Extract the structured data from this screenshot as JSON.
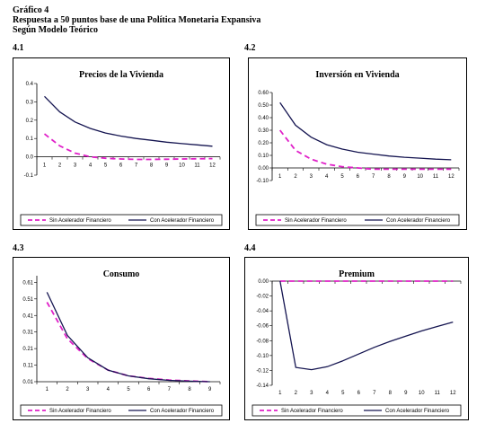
{
  "header": {
    "line1": "Gráfico 4",
    "line2": "Respuesta  a  50  puntos base de una Política Monetaria Expansiva",
    "line3": "Según Modelo Teórico"
  },
  "panel_labels": [
    "4.1",
    "4.2",
    "4.3",
    "4.4"
  ],
  "colors": {
    "sin": "#e020c8",
    "con": "#141450"
  },
  "chart_data": [
    {
      "type": "line",
      "title": "Precios de la Vivienda",
      "x": [
        1,
        2,
        3,
        4,
        5,
        6,
        7,
        8,
        9,
        10,
        11,
        12
      ],
      "ylim": [
        -0.1,
        0.4
      ],
      "yticks": [
        -0.1,
        0,
        0.1,
        0.2,
        0.3,
        0.4
      ],
      "ytick_labels": [
        "-0.1",
        "0.0",
        "0.1",
        "0.2",
        "0.3",
        "0.4"
      ],
      "series": [
        {
          "name": "Sin Acelerador Financiero",
          "style": "dashed",
          "values": [
            0.125,
            0.06,
            0.02,
            0.0,
            -0.008,
            -0.012,
            -0.014,
            -0.014,
            -0.013,
            -0.012,
            -0.011,
            -0.01
          ]
        },
        {
          "name": "Con Acelerador Financiero",
          "style": "solid",
          "values": [
            0.33,
            0.245,
            0.19,
            0.155,
            0.13,
            0.113,
            0.1,
            0.09,
            0.08,
            0.072,
            0.065,
            0.058
          ]
        }
      ],
      "legend_position": "bottom"
    },
    {
      "type": "line",
      "title": "Inversión en Vivienda",
      "x": [
        1,
        2,
        3,
        4,
        5,
        6,
        7,
        8,
        9,
        10,
        11,
        12
      ],
      "ylim": [
        -0.1,
        0.6
      ],
      "yticks": [
        -0.1,
        0,
        0.1,
        0.2,
        0.3,
        0.4,
        0.5,
        0.6
      ],
      "ytick_labels": [
        "-0.10",
        "0.00",
        "0.10",
        "0.20",
        "0.30",
        "0.40",
        "0.50",
        "0.60"
      ],
      "series": [
        {
          "name": "Sin Acelerador Financiero",
          "style": "dashed",
          "values": [
            0.3,
            0.14,
            0.07,
            0.03,
            0.01,
            0.0,
            -0.01,
            -0.01,
            -0.01,
            -0.01,
            -0.01,
            -0.01
          ]
        },
        {
          "name": "Con Acelerador Financiero",
          "style": "solid",
          "values": [
            0.52,
            0.34,
            0.245,
            0.185,
            0.15,
            0.125,
            0.11,
            0.095,
            0.085,
            0.078,
            0.07,
            0.065
          ]
        }
      ],
      "legend_position": "bottom"
    },
    {
      "type": "line",
      "title": "Consumo",
      "x": [
        1,
        2,
        3,
        4,
        5,
        6,
        7,
        8,
        9
      ],
      "ylim": [
        0.01,
        0.65
      ],
      "yticks": [
        0.01,
        0.11,
        0.21,
        0.31,
        0.41,
        0.51,
        0.61
      ],
      "ytick_labels": [
        "0.01",
        "0.11",
        "0.21",
        "0.31",
        "0.41",
        "0.51",
        "0.61"
      ],
      "series": [
        {
          "name": "Sin Acelerador Financiero",
          "style": "dashed",
          "values": [
            0.49,
            0.27,
            0.15,
            0.08,
            0.045,
            0.03,
            0.02,
            0.015,
            0.01
          ]
        },
        {
          "name": "Con Acelerador Financiero",
          "style": "solid",
          "values": [
            0.55,
            0.29,
            0.155,
            0.08,
            0.045,
            0.028,
            0.018,
            0.013,
            0.01
          ]
        }
      ],
      "legend_position": "bottom"
    },
    {
      "type": "line",
      "title": "Premium",
      "x": [
        1,
        2,
        3,
        4,
        5,
        6,
        7,
        8,
        9,
        10,
        11,
        12
      ],
      "ylim": [
        -0.14,
        0.0
      ],
      "yticks": [
        -0.14,
        -0.12,
        -0.1,
        -0.08,
        -0.06,
        -0.04,
        -0.02,
        0.0
      ],
      "ytick_labels": [
        "-0.14",
        "-0.12",
        "-0.10",
        "-0.08",
        "-0.06",
        "-0.04",
        "-0.02",
        "0.00"
      ],
      "series": [
        {
          "name": "Sin Acelerador Financiero",
          "style": "dashed",
          "values": [
            0,
            0,
            0,
            0,
            0,
            0,
            0,
            0,
            0,
            0,
            0,
            0
          ]
        },
        {
          "name": "Con Acelerador Financiero",
          "style": "solid",
          "values": [
            0.0,
            -0.116,
            -0.119,
            -0.115,
            -0.107,
            -0.098,
            -0.089,
            -0.081,
            -0.074,
            -0.067,
            -0.061,
            -0.055
          ]
        }
      ],
      "legend_position": "bottom"
    }
  ]
}
